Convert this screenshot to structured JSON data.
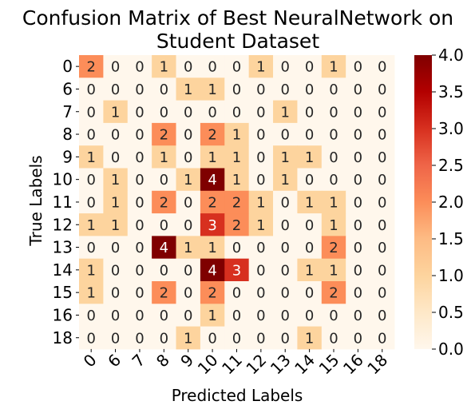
{
  "chart_data": {
    "type": "heatmap",
    "title_line1": "Confusion Matrix of Best NeuralNetwork on",
    "title_line2": "Student Dataset",
    "xlabel": "Predicted Labels",
    "ylabel": "True Labels",
    "row_labels": [
      "0",
      "6",
      "7",
      "8",
      "9",
      "10",
      "11",
      "12",
      "13",
      "14",
      "15",
      "16",
      "18"
    ],
    "col_labels": [
      "0",
      "6",
      "7",
      "8",
      "9",
      "10",
      "11",
      "12",
      "13",
      "14",
      "15",
      "16",
      "18"
    ],
    "matrix": [
      [
        2,
        0,
        0,
        1,
        0,
        0,
        0,
        1,
        0,
        0,
        1,
        0,
        0
      ],
      [
        0,
        0,
        0,
        0,
        1,
        1,
        0,
        0,
        0,
        0,
        0,
        0,
        0
      ],
      [
        0,
        1,
        0,
        0,
        0,
        0,
        0,
        0,
        1,
        0,
        0,
        0,
        0
      ],
      [
        0,
        0,
        0,
        2,
        0,
        2,
        1,
        0,
        0,
        0,
        0,
        0,
        0
      ],
      [
        1,
        0,
        0,
        1,
        0,
        1,
        1,
        0,
        1,
        1,
        0,
        0,
        0
      ],
      [
        0,
        1,
        0,
        0,
        1,
        4,
        1,
        0,
        1,
        0,
        0,
        0,
        0
      ],
      [
        0,
        1,
        0,
        2,
        0,
        2,
        2,
        1,
        0,
        1,
        1,
        0,
        0
      ],
      [
        1,
        1,
        0,
        0,
        0,
        3,
        2,
        1,
        0,
        0,
        1,
        0,
        0
      ],
      [
        0,
        0,
        0,
        4,
        1,
        1,
        0,
        0,
        0,
        0,
        2,
        0,
        0
      ],
      [
        1,
        0,
        0,
        0,
        0,
        4,
        3,
        0,
        0,
        1,
        1,
        0,
        0
      ],
      [
        1,
        0,
        0,
        2,
        0,
        2,
        0,
        0,
        0,
        0,
        2,
        0,
        0
      ],
      [
        0,
        0,
        0,
        0,
        0,
        1,
        0,
        0,
        0,
        0,
        0,
        0,
        0
      ],
      [
        0,
        0,
        0,
        0,
        1,
        0,
        0,
        0,
        0,
        1,
        0,
        0,
        0
      ]
    ],
    "colormap": "OrRd",
    "vmin": 0.0,
    "vmax": 4.0,
    "colorbar_ticks": [
      "0.0",
      "0.5",
      "1.0",
      "1.5",
      "2.0",
      "2.5",
      "3.0",
      "3.5",
      "4.0"
    ]
  }
}
